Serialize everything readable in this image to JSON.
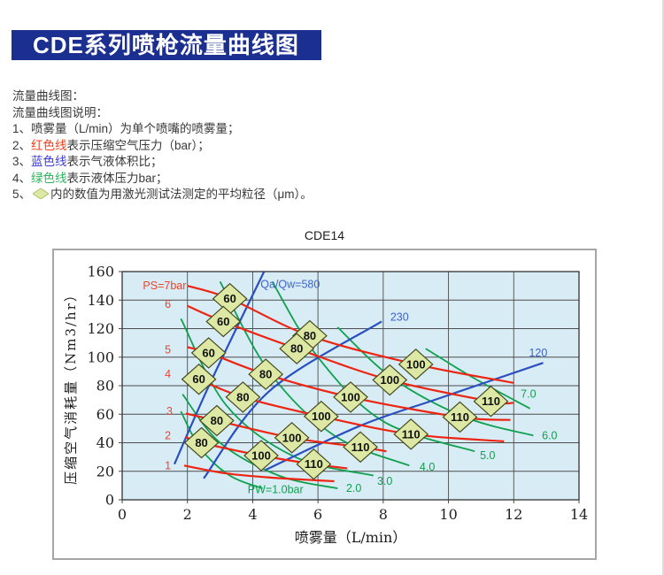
{
  "banner": {
    "title": "CDE系列喷枪流量曲线图"
  },
  "description": {
    "heading": "流量曲线图：",
    "subheading": "流量曲线图说明：",
    "items": [
      {
        "prefix": "1、",
        "segments": [
          {
            "text": "喷雾量（L/min）为单个喷嘴的喷雾量；"
          }
        ]
      },
      {
        "prefix": "2、",
        "segments": [
          {
            "text": "红色线",
            "color": "red"
          },
          {
            "text": "表示压缩空气压力（bar）；"
          }
        ]
      },
      {
        "prefix": "3、",
        "segments": [
          {
            "text": "蓝色线",
            "color": "blue"
          },
          {
            "text": "表示气液体积比；"
          }
        ]
      },
      {
        "prefix": "4、",
        "segments": [
          {
            "text": "绿色线",
            "color": "green"
          },
          {
            "text": "表示液体压力bar；"
          }
        ]
      },
      {
        "prefix": "5、",
        "segments": [
          {
            "icon": "diamond-marker-icon"
          },
          {
            "text": "内的数值为用激光测试法测定的平均粒径（μm）。"
          }
        ]
      }
    ]
  },
  "chart_data": {
    "type": "line",
    "title": "CDE14",
    "xlabel": "喷雾量（L/min）",
    "ylabel": "压缩空气消耗量（Nm3/hr）",
    "xlim": [
      0,
      14
    ],
    "ylim": [
      0,
      160
    ],
    "xticks": [
      0,
      2,
      4,
      6,
      8,
      10,
      12,
      14
    ],
    "yticks": [
      0,
      20,
      40,
      60,
      80,
      100,
      120,
      140,
      160
    ],
    "grid": true,
    "plot_bg": "#d7ecf4",
    "series_red_air_pressure_bar": [
      {
        "label": "PS=7bar",
        "label_pos": [
          1.3,
          150
        ],
        "points": [
          [
            2.0,
            150
          ],
          [
            3.3,
            141
          ],
          [
            5.75,
            115
          ],
          [
            9.0,
            95
          ],
          [
            12.0,
            82
          ]
        ]
      },
      {
        "label": "6",
        "label_pos": [
          1.4,
          137
        ],
        "points": [
          [
            2.0,
            136
          ],
          [
            3.1,
            125
          ],
          [
            5.35,
            106
          ],
          [
            8.2,
            84
          ],
          [
            11.3,
            69
          ],
          [
            12.0,
            68
          ]
        ]
      },
      {
        "label": "5",
        "label_pos": [
          1.4,
          105
        ],
        "points": [
          [
            2.0,
            107
          ],
          [
            2.65,
            103
          ],
          [
            4.4,
            88
          ],
          [
            7.0,
            72
          ],
          [
            10.35,
            58
          ],
          [
            11.9,
            56
          ]
        ]
      },
      {
        "label": "4",
        "label_pos": [
          1.4,
          88
        ],
        "points": [
          [
            2.0,
            88
          ],
          [
            2.35,
            84.5
          ],
          [
            3.7,
            72
          ],
          [
            6.1,
            58.5
          ],
          [
            8.85,
            46
          ],
          [
            11.7,
            41
          ]
        ]
      },
      {
        "label": "3",
        "label_pos": [
          1.45,
          62
        ],
        "points": [
          [
            1.95,
            60.5
          ],
          [
            2.9,
            55.5
          ],
          [
            5.2,
            43.5
          ],
          [
            7.3,
            37
          ],
          [
            8.1,
            34
          ]
        ]
      },
      {
        "label": "2",
        "label_pos": [
          1.4,
          45
        ],
        "points": [
          [
            1.95,
            44
          ],
          [
            2.43,
            40
          ],
          [
            4.26,
            31
          ],
          [
            5.87,
            25
          ],
          [
            6.9,
            22
          ]
        ]
      },
      {
        "label": "1",
        "label_pos": [
          1.4,
          24
        ],
        "points": [
          [
            1.9,
            24
          ],
          [
            3.2,
            18.5
          ],
          [
            4.6,
            15.5
          ],
          [
            6.5,
            13
          ]
        ]
      }
    ],
    "series_blue_air_liquid_ratio": [
      {
        "label": "Qa/Qw=580",
        "label_pos": [
          5.15,
          151
        ],
        "points": [
          [
            1.6,
            25
          ],
          [
            2.7,
            82
          ],
          [
            4.35,
            160
          ]
        ]
      },
      {
        "label": "230",
        "label_pos": [
          8.5,
          128
        ],
        "points": [
          [
            2.5,
            15
          ],
          [
            4.5,
            76
          ],
          [
            7.95,
            125
          ]
        ]
      },
      {
        "label": "120",
        "label_pos": [
          12.75,
          103
        ],
        "points": [
          [
            4.4,
            21
          ],
          [
            7.3,
            52
          ],
          [
            9.7,
            71
          ],
          [
            12.9,
            96
          ]
        ]
      }
    ],
    "series_green_liquid_pressure_bar": [
      {
        "label": "PW=1.0bar",
        "label_pos": [
          4.7,
          7
        ],
        "points": [
          [
            1.8,
            62
          ],
          [
            2.4,
            36
          ],
          [
            3.3,
            17
          ],
          [
            4.3,
            8
          ]
        ]
      },
      {
        "label": "2.0",
        "label_pos": [
          7.1,
          8
        ],
        "points": [
          [
            1.85,
            74
          ],
          [
            3.0,
            40
          ],
          [
            4.8,
            17
          ],
          [
            6.6,
            8
          ]
        ]
      },
      {
        "label": "3.0",
        "label_pos": [
          8.05,
          13
        ],
        "points": [
          [
            1.8,
            127
          ],
          [
            3.2,
            66
          ],
          [
            5.3,
            30
          ],
          [
            7.7,
            17
          ]
        ]
      },
      {
        "label": "4.0",
        "label_pos": [
          9.35,
          23
        ],
        "points": [
          [
            3.0,
            153
          ],
          [
            4.5,
            90
          ],
          [
            6.5,
            45
          ],
          [
            8.8,
            24
          ]
        ]
      },
      {
        "label": "5.0",
        "label_pos": [
          11.2,
          31
        ],
        "points": [
          [
            4.6,
            153
          ],
          [
            6.0,
            100
          ],
          [
            8.0,
            55
          ],
          [
            10.8,
            34
          ]
        ]
      },
      {
        "label": "6.0",
        "label_pos": [
          13.1,
          45
        ],
        "points": [
          [
            6.6,
            121
          ],
          [
            8.3,
            85
          ],
          [
            10.5,
            58
          ],
          [
            12.6,
            45
          ]
        ]
      },
      {
        "label": "7.0",
        "label_pos": [
          12.45,
          74
        ],
        "points": [
          [
            9.3,
            106
          ],
          [
            10.8,
            85
          ],
          [
            12.5,
            64
          ]
        ]
      }
    ],
    "diamond_markers_mean_particle_um": [
      {
        "value": "60",
        "x": 3.3,
        "y": 141
      },
      {
        "value": "60",
        "x": 3.1,
        "y": 125
      },
      {
        "value": "60",
        "x": 2.65,
        "y": 103
      },
      {
        "value": "60",
        "x": 2.35,
        "y": 84.5
      },
      {
        "value": "80",
        "x": 5.75,
        "y": 115
      },
      {
        "value": "80",
        "x": 5.35,
        "y": 106
      },
      {
        "value": "80",
        "x": 4.4,
        "y": 88
      },
      {
        "value": "80",
        "x": 3.7,
        "y": 72
      },
      {
        "value": "80",
        "x": 2.9,
        "y": 55.5
      },
      {
        "value": "80",
        "x": 2.43,
        "y": 40
      },
      {
        "value": "100",
        "x": 9.0,
        "y": 95
      },
      {
        "value": "100",
        "x": 8.2,
        "y": 84
      },
      {
        "value": "100",
        "x": 7.0,
        "y": 72
      },
      {
        "value": "100",
        "x": 6.1,
        "y": 58.5
      },
      {
        "value": "100",
        "x": 5.2,
        "y": 43.5
      },
      {
        "value": "100",
        "x": 4.26,
        "y": 31
      },
      {
        "value": "110",
        "x": 11.3,
        "y": 69
      },
      {
        "value": "110",
        "x": 10.35,
        "y": 58
      },
      {
        "value": "110",
        "x": 8.85,
        "y": 46
      },
      {
        "value": "110",
        "x": 7.3,
        "y": 37
      },
      {
        "value": "110",
        "x": 5.87,
        "y": 25
      }
    ],
    "colors": {
      "red_line": "#ee2413",
      "red_label": "#f0422e",
      "green_line": "#0fa14e",
      "blue_line": "#2a4fc0",
      "blue_label": "#3c63cf",
      "diamond_fill": "#dde8a4",
      "diamond_stroke": "#46491d",
      "grid": "#4d4d4d",
      "plot_border": "#333333",
      "banner_bg": "#1b2f91",
      "plot_bg": "#d7ecf4"
    }
  }
}
